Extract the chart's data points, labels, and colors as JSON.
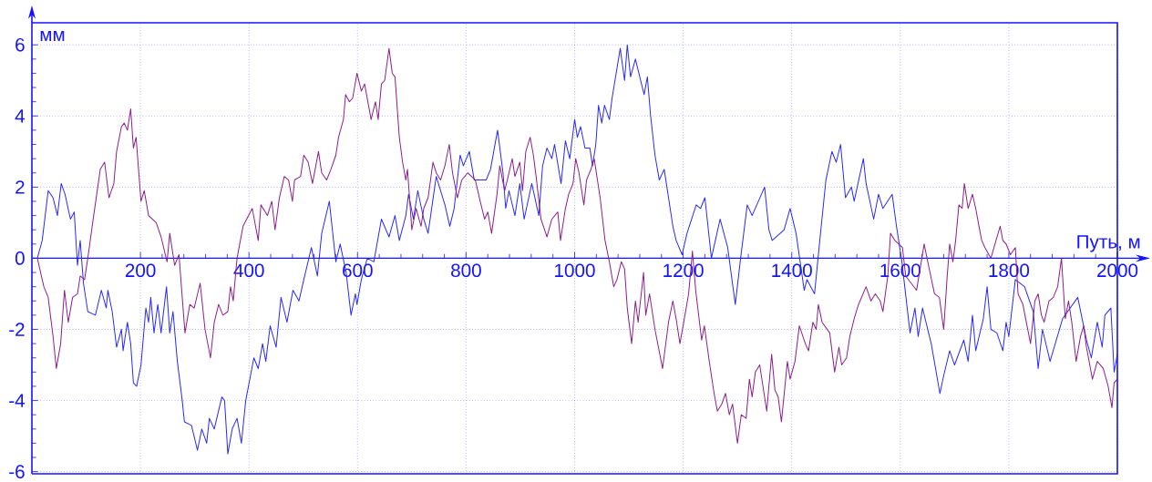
{
  "chart_data": {
    "type": "line",
    "xlabel": "Путь, м",
    "ylabel": "мм",
    "xlim": [
      0,
      2000
    ],
    "ylim": [
      -6.06,
      6.62
    ],
    "xticks": [
      200,
      400,
      600,
      800,
      1000,
      1200,
      1400,
      1600,
      1800,
      2000
    ],
    "yticks": [
      -6,
      -4,
      -2,
      0,
      2,
      4,
      6
    ],
    "grid": true,
    "line_style": "solid",
    "series": [
      {
        "color": "#2828ff",
        "x": [
          10,
          19,
          30,
          39,
          47,
          54,
          61,
          71,
          78,
          84,
          89,
          95,
          103,
          117,
          128,
          137,
          140,
          148,
          156,
          165,
          168,
          176,
          182,
          187,
          193,
          201,
          210,
          215,
          219,
          225,
          232,
          238,
          248,
          254,
          260,
          268,
          277,
          281,
          294,
          305,
          313,
          322,
          327,
          336,
          350,
          355,
          361,
          369,
          378,
          386,
          394,
          409,
          417,
          425,
          431,
          439,
          450,
          459,
          470,
          481,
          492,
          501,
          515,
          526,
          534,
          548,
          560,
          568,
          579,
          588,
          596,
          599,
          607,
          618,
          630,
          644,
          658,
          669,
          677,
          689,
          694,
          703,
          711,
          722,
          730,
          745,
          761,
          770,
          778,
          789,
          795,
          806,
          815,
          837,
          845,
          858,
          868,
          873,
          879,
          890,
          899,
          907,
          921,
          934,
          941,
          949,
          958,
          963,
          975,
          983,
          991,
          1000,
          1005,
          1011,
          1019,
          1028,
          1033,
          1039,
          1044,
          1050,
          1055,
          1064,
          1069,
          1084,
          1092,
          1097,
          1103,
          1112,
          1128,
          1134,
          1140,
          1148,
          1156,
          1165,
          1181,
          1187,
          1198,
          1207,
          1224,
          1232,
          1240,
          1252,
          1268,
          1282,
          1296,
          1305,
          1318,
          1327,
          1350,
          1358,
          1364,
          1386,
          1397,
          1408,
          1423,
          1428,
          1442,
          1453,
          1463,
          1474,
          1482,
          1490,
          1499,
          1510,
          1515,
          1532,
          1537,
          1551,
          1560,
          1568,
          1585,
          1593,
          1603,
          1618,
          1627,
          1633,
          1641,
          1657,
          1673,
          1680,
          1691,
          1700,
          1717,
          1725,
          1733,
          1739,
          1753,
          1760,
          1767,
          1778,
          1789,
          1795,
          1800,
          1812,
          1829,
          1845,
          1854,
          1862,
          1876,
          1899,
          1927,
          1943,
          1952,
          1963,
          1972,
          1977,
          1988,
          1994,
          2000
        ],
        "values": [
          0,
          0.5,
          1.9,
          1.7,
          1.2,
          2.1,
          1.8,
          1.1,
          1.3,
          -0.2,
          0.5,
          -0.7,
          -1.5,
          -1.6,
          -0.9,
          -1.4,
          -0.9,
          -1.5,
          -2.5,
          -2.0,
          -2.6,
          -1.8,
          -2.4,
          -3.5,
          -3.6,
          -3.0,
          -1.4,
          -1.8,
          -1.1,
          -2.1,
          -1.3,
          -2.1,
          -0.8,
          -2.1,
          -1.5,
          -2.9,
          -4.0,
          -4.6,
          -4.7,
          -5.4,
          -4.8,
          -5.2,
          -4.5,
          -4.8,
          -3.9,
          -4.0,
          -5.5,
          -4.8,
          -4.5,
          -5.2,
          -4.0,
          -2.8,
          -3.1,
          -2.4,
          -2.9,
          -1.9,
          -2.5,
          -1.1,
          -1.8,
          -0.9,
          -1.2,
          -0.6,
          0.3,
          -0.5,
          0.7,
          1.6,
          -0.1,
          0.4,
          -0.4,
          -1.6,
          -1.0,
          -1.3,
          -0.6,
          0.0,
          -0.1,
          1.1,
          0.6,
          1.2,
          0.5,
          1.2,
          1.8,
          1.1,
          1.9,
          1.1,
          0.7,
          2.3,
          1.5,
          0.9,
          1.4,
          2.9,
          2.6,
          3.0,
          2.2,
          2.2,
          2.5,
          3.6,
          2.4,
          1.4,
          1.9,
          1.2,
          2.1,
          1.1,
          2.1,
          1.2,
          2.6,
          3.1,
          2.8,
          3.2,
          2.1,
          3.3,
          2.8,
          3.9,
          3.4,
          3.7,
          3.1,
          3.1,
          2.6,
          3.2,
          4.3,
          3.8,
          4.3,
          3.9,
          4.5,
          5.9,
          5.0,
          6.0,
          5.1,
          5.6,
          4.6,
          5.1,
          4.0,
          2.9,
          2.2,
          2.5,
          0.9,
          0.5,
          0.1,
          0.7,
          1.5,
          1.4,
          1.7,
          0.0,
          1.1,
          0.3,
          -1.3,
          -0.1,
          1.5,
          1.2,
          2.0,
          0.8,
          0.5,
          0.8,
          1.4,
          0.7,
          -0.9,
          -0.6,
          -1.0,
          0.7,
          2.2,
          3.0,
          2.7,
          3.2,
          1.7,
          2.0,
          1.6,
          2.8,
          2.1,
          1.1,
          1.8,
          1.4,
          1.8,
          0.9,
          -0.1,
          -2.1,
          -1.4,
          -2.2,
          -1.4,
          -2.4,
          -3.8,
          -3.3,
          -2.6,
          -3.0,
          -2.3,
          -2.9,
          -1.6,
          -2.6,
          -1.7,
          -0.8,
          -2.0,
          -2.1,
          -2.6,
          -1.8,
          -2.2,
          -0.6,
          -0.8,
          -1.5,
          -3.1,
          -2.0,
          -2.9,
          -1.7,
          -1.1,
          -2.3,
          -2.8,
          -1.8,
          -2.5,
          -1.6,
          -1.4,
          -3.2,
          -2.7
        ]
      },
      {
        "color": "#8c1e8c",
        "x": [
          10,
          22,
          30,
          39,
          45,
          53,
          60,
          67,
          75,
          84,
          89,
          97,
          103,
          112,
          126,
          134,
          142,
          151,
          156,
          165,
          170,
          176,
          182,
          187,
          192,
          198,
          201,
          207,
          215,
          229,
          238,
          249,
          254,
          263,
          271,
          276,
          282,
          291,
          299,
          310,
          319,
          329,
          336,
          344,
          352,
          361,
          366,
          371,
          375,
          378,
          389,
          406,
          417,
          422,
          434,
          442,
          448,
          456,
          465,
          473,
          480,
          484,
          495,
          501,
          509,
          517,
          528,
          534,
          543,
          551,
          560,
          565,
          574,
          578,
          585,
          591,
          599,
          607,
          613,
          625,
          633,
          638,
          644,
          650,
          658,
          664,
          669,
          677,
          683,
          689,
          692,
          700,
          708,
          717,
          722,
          730,
          739,
          745,
          753,
          761,
          769,
          775,
          784,
          792,
          803,
          817,
          826,
          834,
          840,
          847,
          857,
          862,
          871,
          876,
          885,
          890,
          899,
          904,
          910,
          918,
          924,
          929,
          938,
          949,
          958,
          969,
          974,
          983,
          989,
          997,
          1002,
          1008,
          1017,
          1022,
          1030,
          1036,
          1042,
          1047,
          1056,
          1064,
          1072,
          1078,
          1086,
          1092,
          1097,
          1105,
          1112,
          1117,
          1127,
          1131,
          1138,
          1148,
          1162,
          1173,
          1181,
          1187,
          1194,
          1201,
          1210,
          1217,
          1223,
          1234,
          1239,
          1249,
          1257,
          1263,
          1271,
          1278,
          1285,
          1291,
          1300,
          1307,
          1316,
          1322,
          1327,
          1333,
          1341,
          1347,
          1354,
          1363,
          1369,
          1375,
          1381,
          1392,
          1397,
          1406,
          1414,
          1425,
          1431,
          1439,
          1445,
          1449,
          1456,
          1470,
          1479,
          1487,
          1492,
          1501,
          1507,
          1515,
          1523,
          1537,
          1546,
          1554,
          1563,
          1568,
          1577,
          1582,
          1590,
          1604,
          1610,
          1630,
          1644,
          1652,
          1663,
          1672,
          1680,
          1686,
          1691,
          1697,
          1702,
          1708,
          1714,
          1718,
          1725,
          1733,
          1739,
          1745,
          1750,
          1756,
          1767,
          1784,
          1789,
          1795,
          1803,
          1812,
          1817,
          1826,
          1831,
          1840,
          1848,
          1854,
          1860,
          1865,
          1874,
          1882,
          1890,
          1897,
          1904,
          1910,
          1916,
          1924,
          1932,
          1938,
          1943,
          1954,
          1963,
          1974,
          1983,
          1990,
          1994,
          2000
        ],
        "values": [
          0,
          -0.8,
          -1.1,
          -2.2,
          -3.1,
          -2.4,
          -0.9,
          -1.8,
          -1.1,
          -1.0,
          -0.5,
          -0.6,
          0.0,
          1.0,
          2.5,
          2.7,
          1.7,
          2.1,
          3.0,
          3.7,
          3.8,
          3.6,
          4.2,
          3.1,
          3.4,
          2.2,
          1.6,
          1.9,
          1.2,
          1.0,
          0.6,
          -0.1,
          0.7,
          -0.2,
          0.1,
          -0.9,
          -2.1,
          -1.3,
          -1.4,
          -0.7,
          -2.0,
          -2.8,
          -1.8,
          -1.3,
          -1.6,
          -1.5,
          -0.8,
          -1.2,
          -0.5,
          0.0,
          0.9,
          1.4,
          0.5,
          1.5,
          1.2,
          1.6,
          0.8,
          1.7,
          2.3,
          2.2,
          1.6,
          2.2,
          2.3,
          2.9,
          2.7,
          2.1,
          3.0,
          2.4,
          2.2,
          2.5,
          2.9,
          3.4,
          3.9,
          4.6,
          4.4,
          4.5,
          5.2,
          4.7,
          4.9,
          3.9,
          4.4,
          3.9,
          4.9,
          5.0,
          5.9,
          5.2,
          5.1,
          3.4,
          2.7,
          2.2,
          2.5,
          0.8,
          1.4,
          0.9,
          1.4,
          1.7,
          2.7,
          2.4,
          2.2,
          2.6,
          3.2,
          2.4,
          1.7,
          2.2,
          2.4,
          2.2,
          1.6,
          1.1,
          1.3,
          0.7,
          1.8,
          2.6,
          1.9,
          2.2,
          2.8,
          2.3,
          2.7,
          1.9,
          3.0,
          3.4,
          2.9,
          2.3,
          1.1,
          0.6,
          1.1,
          1.3,
          0.5,
          1.4,
          1.8,
          2.1,
          2.8,
          2.4,
          1.5,
          2.2,
          2.5,
          2.8,
          2.2,
          1.7,
          0.5,
          -0.1,
          -0.8,
          -0.6,
          -0.1,
          -0.3,
          -1.4,
          -2.4,
          -1.2,
          -1.8,
          -0.4,
          -1.6,
          -1.0,
          -2.0,
          -3.1,
          -1.8,
          -1.2,
          -1.7,
          -2.4,
          -1.8,
          -1.0,
          0.2,
          -0.9,
          -2.3,
          -1.9,
          -3.0,
          -3.8,
          -4.3,
          -4.1,
          -3.8,
          -4.4,
          -4.1,
          -5.2,
          -4.4,
          -4.5,
          -3.4,
          -3.9,
          -3.2,
          -3.0,
          -3.6,
          -4.3,
          -2.7,
          -3.7,
          -3.9,
          -4.6,
          -2.9,
          -3.4,
          -2.9,
          -1.9,
          -2.4,
          -2.6,
          -1.8,
          -2.0,
          -1.3,
          -1.8,
          -2.1,
          -3.2,
          -2.5,
          -3.0,
          -2.8,
          -2.2,
          -1.7,
          -1.3,
          -0.8,
          -1.2,
          -1.0,
          -1.2,
          -1.5,
          -0.5,
          0.7,
          0.5,
          0.3,
          -0.5,
          -0.9,
          0.4,
          -0.2,
          -1.0,
          -1.1,
          -2.0,
          -0.6,
          0.4,
          -0.1,
          0.5,
          1.5,
          1.4,
          2.1,
          1.4,
          1.8,
          1.4,
          0.9,
          0.5,
          0.3,
          0.0,
          0.9,
          0.5,
          0.4,
          0.1,
          0.3,
          -1.0,
          -1.3,
          -1.7,
          -2.4,
          -1.2,
          -1.0,
          -1.6,
          -1.8,
          -1.2,
          -1.1,
          -0.8,
          0.0,
          -1.7,
          -1.2,
          -1.8,
          -2.9,
          -2.2,
          -1.9,
          -2.5,
          -3.4,
          -2.9,
          -3.1,
          -3.6,
          -4.2,
          -3.5,
          -3.4
        ]
      }
    ]
  }
}
